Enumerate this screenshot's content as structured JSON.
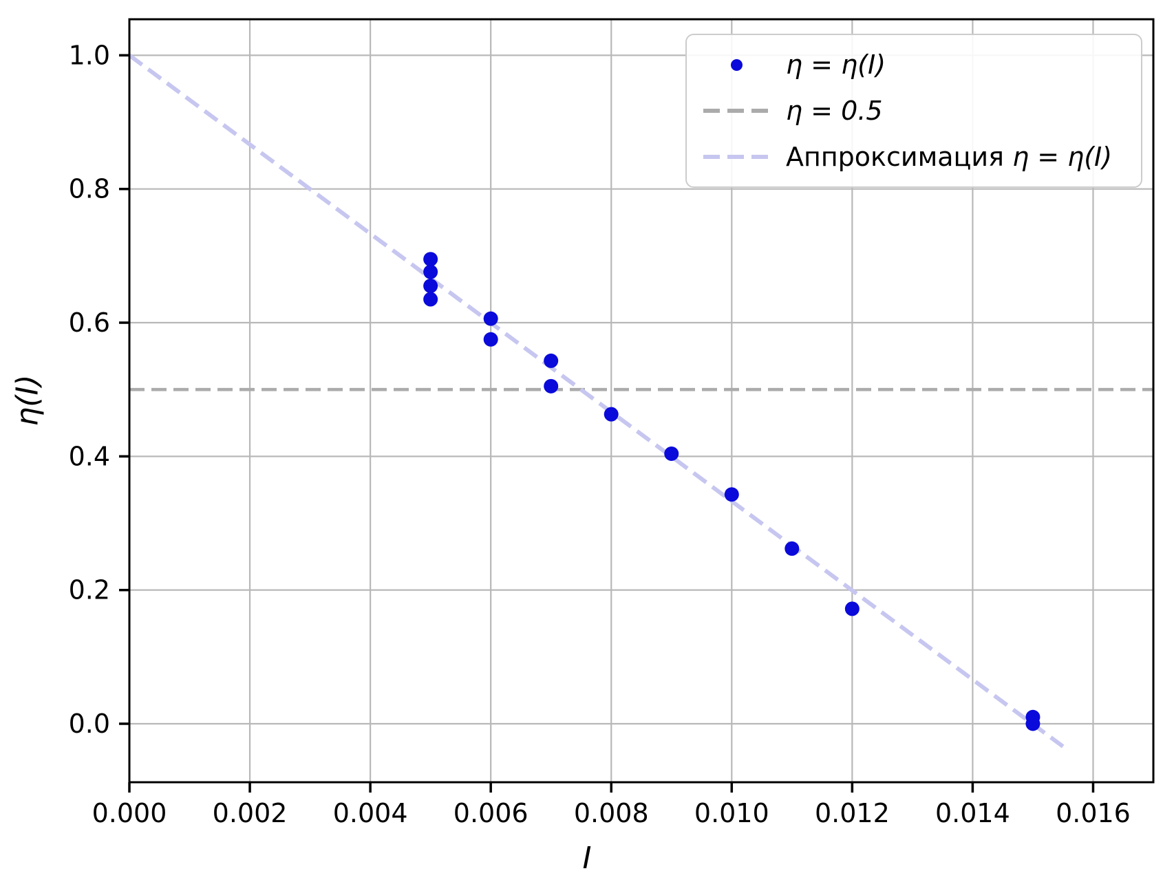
{
  "chart_data": {
    "type": "scatter",
    "title": "",
    "xlabel": "I",
    "ylabel": "η(I)",
    "xlim": [
      0,
      0.017
    ],
    "ylim": [
      -0.0875,
      1.0539
    ],
    "grid": true,
    "legend_position": "upper right",
    "x_ticks": [
      {
        "v": 0.0,
        "label": "0.000"
      },
      {
        "v": 0.002,
        "label": "0.002"
      },
      {
        "v": 0.004,
        "label": "0.004"
      },
      {
        "v": 0.006,
        "label": "0.006"
      },
      {
        "v": 0.008,
        "label": "0.008"
      },
      {
        "v": 0.01,
        "label": "0.010"
      },
      {
        "v": 0.012,
        "label": "0.012"
      },
      {
        "v": 0.014,
        "label": "0.014"
      },
      {
        "v": 0.016,
        "label": "0.016"
      }
    ],
    "y_ticks": [
      {
        "v": 0.0,
        "label": "0.0"
      },
      {
        "v": 0.2,
        "label": "0.2"
      },
      {
        "v": 0.4,
        "label": "0.4"
      },
      {
        "v": 0.6,
        "label": "0.6"
      },
      {
        "v": 0.8,
        "label": "0.8"
      },
      {
        "v": 1.0,
        "label": "1.0"
      }
    ],
    "series": [
      {
        "name": "η = η(I)",
        "kind": "scatter",
        "color": "#0a0ada",
        "marker_radius": 10.5,
        "points": [
          [
            0.005,
            0.695
          ],
          [
            0.005,
            0.676
          ],
          [
            0.005,
            0.655
          ],
          [
            0.005,
            0.635
          ],
          [
            0.006,
            0.606
          ],
          [
            0.006,
            0.575
          ],
          [
            0.007,
            0.543
          ],
          [
            0.007,
            0.505
          ],
          [
            0.008,
            0.463
          ],
          [
            0.009,
            0.404
          ],
          [
            0.01,
            0.343
          ],
          [
            0.011,
            0.262
          ],
          [
            0.012,
            0.172
          ],
          [
            0.015,
            0.01
          ],
          [
            0.015,
            0.0
          ]
        ]
      },
      {
        "name": "η = 0.5",
        "kind": "hline",
        "y": 0.5,
        "color": "#ababab",
        "linestyle": "dashed",
        "linewidth": 4.7,
        "dash": "22 10"
      },
      {
        "name": "Аппроксимация η = η(I)",
        "kind": "line",
        "color": "#c6c6f0",
        "linestyle": "dashed",
        "linewidth": 6,
        "dash": "23 11",
        "points": [
          [
            0.0,
            1.0
          ],
          [
            0.0155,
            -0.034
          ]
        ]
      }
    ],
    "style": {
      "grid_color": "#b8b8b8",
      "spine_color": "#000000",
      "tick_color": "#000000",
      "background": "#ffffff"
    }
  },
  "legend": {
    "items": [
      {
        "marker": "dot",
        "marker_color": "#0a0ada",
        "prefix": "",
        "math": "η = η(I)"
      },
      {
        "marker": "dashed-line",
        "marker_color": "#ababab",
        "prefix": "",
        "math": "η = 0.5"
      },
      {
        "marker": "dashed-line",
        "marker_color": "#c6c6f0",
        "prefix": "Аппроксимация ",
        "math": "η = η(I)"
      }
    ]
  }
}
